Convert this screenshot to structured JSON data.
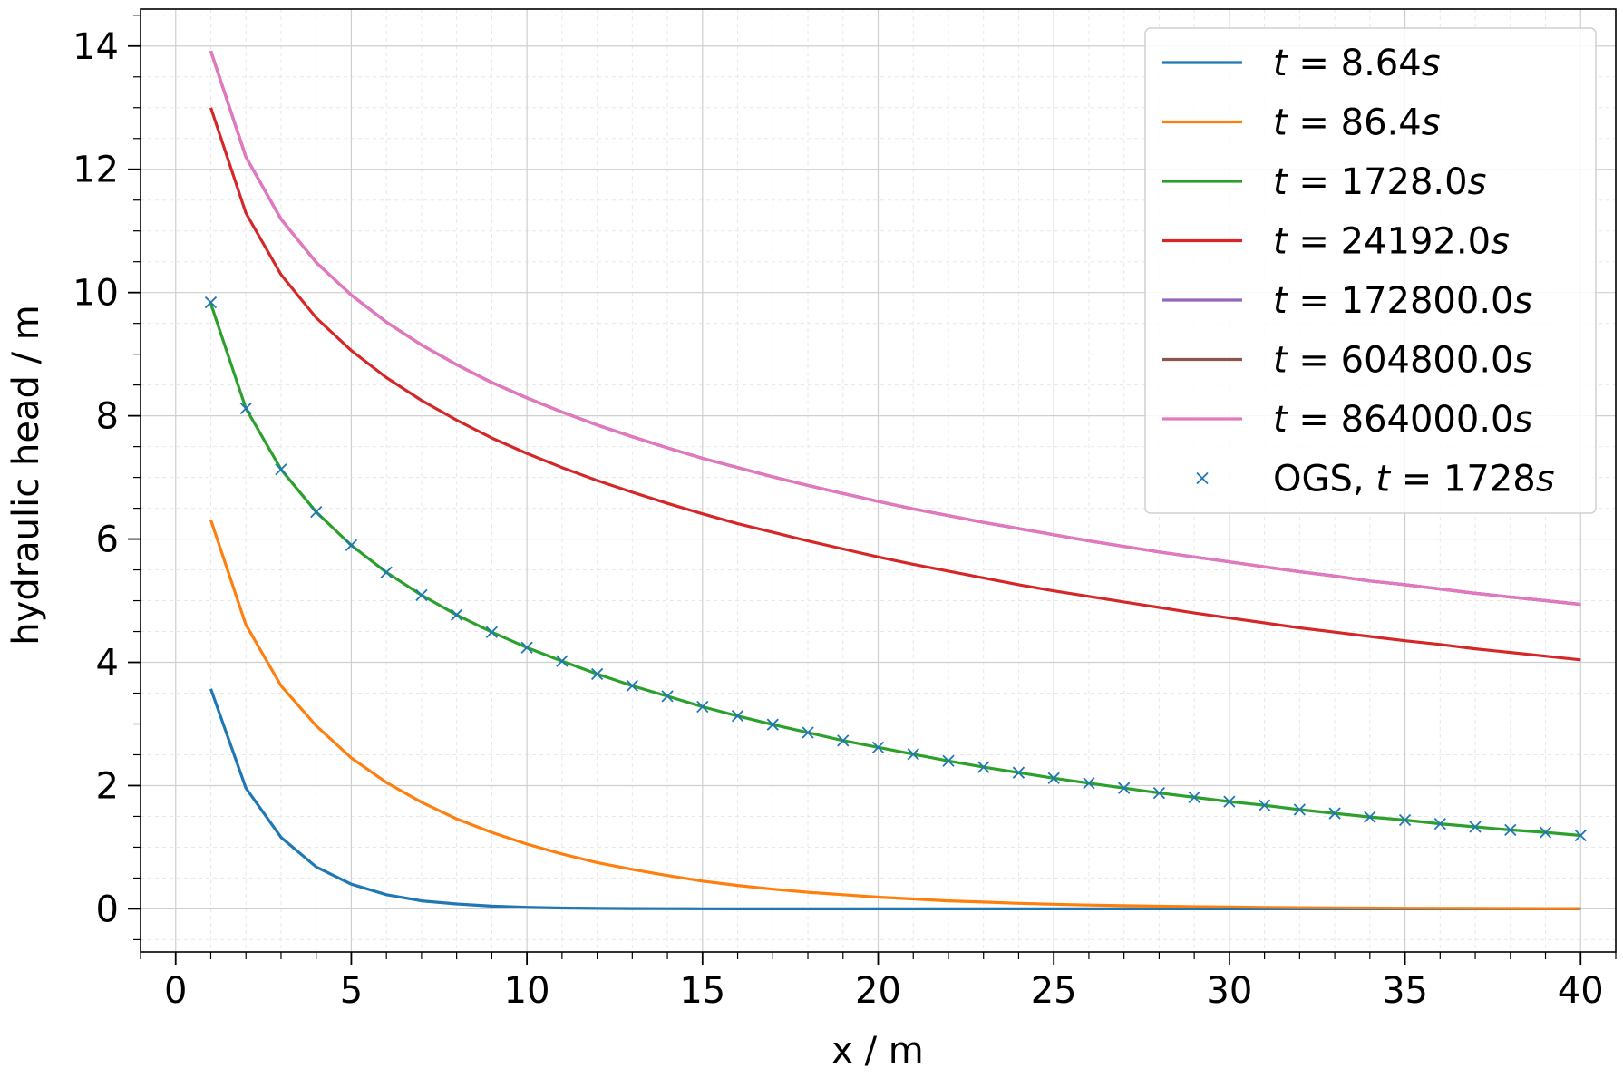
{
  "chart_data": {
    "type": "line",
    "xlabel": "x / m",
    "ylabel": "hydraulic head / m",
    "xlim": [
      -1,
      41
    ],
    "ylim": [
      -0.7,
      14.6
    ],
    "xticks": [
      0,
      5,
      10,
      15,
      20,
      25,
      30,
      35,
      40
    ],
    "xtick_labels": [
      "0",
      "5",
      "10",
      "15",
      "20",
      "25",
      "30",
      "35",
      "40"
    ],
    "yticks": [
      0,
      2,
      4,
      6,
      8,
      10,
      12,
      14
    ],
    "ytick_labels": [
      "0",
      "2",
      "4",
      "6",
      "8",
      "10",
      "12",
      "14"
    ],
    "grid": true,
    "legend_position": "top-right",
    "x": [
      1,
      2,
      3,
      4,
      5,
      6,
      7,
      8,
      9,
      10,
      11,
      12,
      13,
      14,
      15,
      16,
      17,
      18,
      19,
      20,
      21,
      22,
      23,
      24,
      25,
      26,
      27,
      28,
      29,
      30,
      31,
      32,
      33,
      34,
      35,
      36,
      37,
      38,
      39,
      40
    ],
    "series": [
      {
        "name": "t = 8.64s",
        "legend_var": "t",
        "legend_eq": " = 8.64",
        "legend_unit": "s",
        "color": "#1f77b4",
        "values": [
          3.57,
          1.96,
          1.16,
          0.68,
          0.4,
          0.23,
          0.13,
          0.08,
          0.045,
          0.025,
          0.014,
          0.008,
          0.005,
          0.003,
          0.002,
          0.001,
          0.001,
          0,
          0,
          0,
          0,
          0,
          0,
          0,
          0,
          0,
          0,
          0,
          0,
          0,
          0,
          0,
          0,
          0,
          0,
          0,
          0,
          0,
          0,
          0
        ]
      },
      {
        "name": "t = 86.4s",
        "legend_var": "t",
        "legend_eq": " = 86.4",
        "legend_unit": "s",
        "color": "#ff7f0e",
        "values": [
          6.31,
          4.61,
          3.62,
          2.97,
          2.45,
          2.05,
          1.73,
          1.46,
          1.24,
          1.05,
          0.89,
          0.75,
          0.64,
          0.54,
          0.45,
          0.38,
          0.32,
          0.27,
          0.23,
          0.19,
          0.16,
          0.13,
          0.11,
          0.09,
          0.075,
          0.062,
          0.052,
          0.043,
          0.035,
          0.029,
          0.024,
          0.019,
          0.016,
          0.013,
          0.011,
          0.009,
          0.007,
          0.006,
          0.005,
          0.004
        ]
      },
      {
        "name": "t = 1728.0s",
        "legend_var": "t",
        "legend_eq": " = 1728.0",
        "legend_unit": "s",
        "color": "#2ca02c",
        "values": [
          9.82,
          8.12,
          7.13,
          6.44,
          5.9,
          5.46,
          5.09,
          4.77,
          4.49,
          4.24,
          4.02,
          3.81,
          3.62,
          3.45,
          3.28,
          3.13,
          2.99,
          2.86,
          2.73,
          2.62,
          2.51,
          2.4,
          2.3,
          2.21,
          2.12,
          2.04,
          1.96,
          1.88,
          1.81,
          1.74,
          1.68,
          1.61,
          1.55,
          1.49,
          1.44,
          1.38,
          1.33,
          1.28,
          1.24,
          1.19
        ]
      },
      {
        "name": "t = 24192.0s",
        "legend_var": "t",
        "legend_eq": " = 24192.0",
        "legend_unit": "s",
        "color": "#d62728",
        "values": [
          13.0,
          11.29,
          10.29,
          9.59,
          9.06,
          8.62,
          8.25,
          7.93,
          7.64,
          7.39,
          7.16,
          6.95,
          6.76,
          6.58,
          6.41,
          6.25,
          6.11,
          5.97,
          5.84,
          5.71,
          5.59,
          5.48,
          5.37,
          5.26,
          5.16,
          5.07,
          4.98,
          4.89,
          4.8,
          4.72,
          4.64,
          4.56,
          4.49,
          4.42,
          4.35,
          4.29,
          4.22,
          4.16,
          4.1,
          4.04
        ]
      },
      {
        "name": "t = 172800.0s",
        "legend_var": "t",
        "legend_eq": " = 172800.0",
        "legend_unit": "s",
        "color": "#9467bd",
        "values": [
          13.92,
          12.2,
          11.19,
          10.49,
          9.96,
          9.52,
          9.15,
          8.83,
          8.54,
          8.29,
          8.06,
          7.85,
          7.66,
          7.48,
          7.31,
          7.16,
          7.01,
          6.87,
          6.74,
          6.61,
          6.49,
          6.38,
          6.27,
          6.17,
          6.07,
          5.97,
          5.88,
          5.79,
          5.71,
          5.63,
          5.55,
          5.47,
          5.4,
          5.32,
          5.26,
          5.19,
          5.12,
          5.06,
          5.0,
          4.94
        ]
      },
      {
        "name": "t = 604800.0s",
        "legend_var": "t",
        "legend_eq": " = 604800.0",
        "legend_unit": "s",
        "color": "#8c564b",
        "values": [
          13.92,
          12.2,
          11.19,
          10.49,
          9.96,
          9.52,
          9.15,
          8.83,
          8.54,
          8.29,
          8.06,
          7.85,
          7.66,
          7.48,
          7.31,
          7.16,
          7.01,
          6.87,
          6.74,
          6.61,
          6.49,
          6.38,
          6.27,
          6.17,
          6.07,
          5.97,
          5.88,
          5.79,
          5.71,
          5.63,
          5.55,
          5.47,
          5.4,
          5.32,
          5.26,
          5.19,
          5.12,
          5.06,
          5.0,
          4.94
        ]
      },
      {
        "name": "t = 864000.0s",
        "legend_var": "t",
        "legend_eq": " = 864000.0",
        "legend_unit": "s",
        "color": "#e377c2",
        "values": [
          13.92,
          12.2,
          11.19,
          10.49,
          9.96,
          9.52,
          9.15,
          8.83,
          8.54,
          8.29,
          8.06,
          7.85,
          7.66,
          7.48,
          7.31,
          7.16,
          7.01,
          6.87,
          6.74,
          6.61,
          6.49,
          6.38,
          6.27,
          6.17,
          6.07,
          5.97,
          5.88,
          5.79,
          5.71,
          5.63,
          5.55,
          5.47,
          5.4,
          5.32,
          5.26,
          5.19,
          5.12,
          5.06,
          5.0,
          4.94
        ]
      }
    ],
    "markers": {
      "name": "OGS, t = 1728s",
      "legend_prefix": "OGS, ",
      "legend_var": "t",
      "legend_eq": " = 1728",
      "legend_unit": "s",
      "color": "#1f77b4",
      "marker": "x",
      "x": [
        1,
        2,
        3,
        4,
        5,
        6,
        7,
        8,
        9,
        10,
        11,
        12,
        13,
        14,
        15,
        16,
        17,
        18,
        19,
        20,
        21,
        22,
        23,
        24,
        25,
        26,
        27,
        28,
        29,
        30,
        31,
        32,
        33,
        34,
        35,
        36,
        37,
        38,
        39,
        40
      ],
      "values": [
        9.84,
        8.12,
        7.13,
        6.44,
        5.9,
        5.46,
        5.09,
        4.77,
        4.49,
        4.24,
        4.02,
        3.81,
        3.62,
        3.45,
        3.28,
        3.13,
        2.99,
        2.86,
        2.73,
        2.62,
        2.51,
        2.4,
        2.3,
        2.21,
        2.12,
        2.04,
        1.96,
        1.88,
        1.81,
        1.74,
        1.68,
        1.61,
        1.55,
        1.49,
        1.44,
        1.38,
        1.33,
        1.28,
        1.24,
        1.19
      ]
    }
  }
}
